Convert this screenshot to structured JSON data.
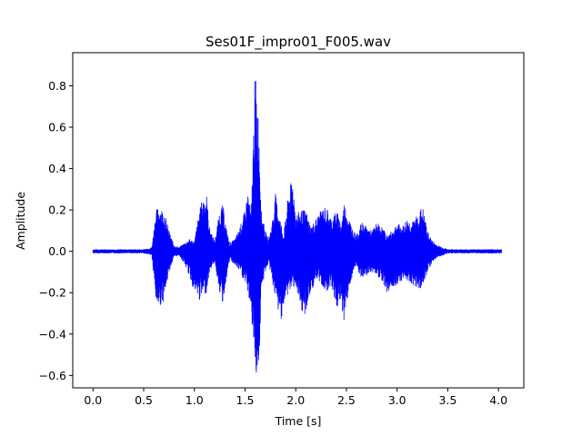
{
  "chart_data": {
    "type": "line",
    "title": "Ses01F_impro01_F005.wav",
    "xlabel": "Time [s]",
    "ylabel": "Amplitude",
    "xlim": [
      -0.2,
      4.25
    ],
    "ylim": [
      -0.66,
      0.96
    ],
    "x_ticks": [
      0.0,
      0.5,
      1.0,
      1.5,
      2.0,
      2.5,
      3.0,
      3.5,
      4.0
    ],
    "x_tick_labels": [
      "0.0",
      "0.5",
      "1.0",
      "1.5",
      "2.0",
      "2.5",
      "3.0",
      "3.5",
      "4.0"
    ],
    "y_ticks": [
      -0.6,
      -0.4,
      -0.2,
      0.0,
      0.2,
      0.4,
      0.6,
      0.8
    ],
    "y_tick_labels": [
      "−0.6",
      "−0.4",
      "−0.2",
      "0.0",
      "0.2",
      "0.4",
      "0.6",
      "0.8"
    ],
    "grid": false,
    "series": [
      {
        "color": "#0000ff",
        "envelope": {
          "x": [
            0.0,
            0.1,
            0.2,
            0.3,
            0.4,
            0.5,
            0.58,
            0.62,
            0.65,
            0.7,
            0.75,
            0.8,
            0.85,
            0.9,
            0.95,
            1.0,
            1.05,
            1.08,
            1.12,
            1.15,
            1.2,
            1.25,
            1.28,
            1.32,
            1.35,
            1.4,
            1.45,
            1.5,
            1.53,
            1.56,
            1.6,
            1.62,
            1.64,
            1.66,
            1.7,
            1.73,
            1.76,
            1.8,
            1.85,
            1.88,
            1.93,
            1.97,
            2.0,
            2.05,
            2.1,
            2.15,
            2.2,
            2.25,
            2.3,
            2.35,
            2.4,
            2.45,
            2.48,
            2.52,
            2.57,
            2.6,
            2.65,
            2.7,
            2.75,
            2.8,
            2.85,
            2.9,
            2.95,
            3.0,
            3.05,
            3.1,
            3.15,
            3.2,
            3.25,
            3.3,
            3.35,
            3.4,
            3.45,
            3.5,
            3.6,
            3.7,
            3.8,
            3.9,
            4.0,
            4.03
          ],
          "max": [
            0.01,
            0.01,
            0.01,
            0.01,
            0.01,
            0.01,
            0.02,
            0.2,
            0.22,
            0.2,
            0.1,
            0.03,
            0.02,
            0.04,
            0.06,
            0.05,
            0.2,
            0.26,
            0.28,
            0.12,
            0.05,
            0.2,
            0.23,
            0.1,
            0.04,
            0.06,
            0.12,
            0.2,
            0.3,
            0.18,
            0.89,
            0.75,
            0.6,
            0.2,
            0.1,
            0.06,
            0.12,
            0.28,
            0.15,
            0.08,
            0.29,
            0.36,
            0.18,
            0.2,
            0.2,
            0.12,
            0.16,
            0.2,
            0.22,
            0.16,
            0.2,
            0.14,
            0.24,
            0.17,
            0.1,
            0.08,
            0.14,
            0.12,
            0.1,
            0.14,
            0.12,
            0.08,
            0.1,
            0.14,
            0.12,
            0.16,
            0.14,
            0.18,
            0.22,
            0.1,
            0.05,
            0.03,
            0.02,
            0.01,
            0.01,
            0.01,
            0.01,
            0.01,
            0.01,
            0.01
          ],
          "min": [
            -0.01,
            -0.01,
            -0.01,
            -0.01,
            -0.01,
            -0.01,
            -0.02,
            -0.25,
            -0.27,
            -0.24,
            -0.1,
            -0.03,
            -0.02,
            -0.06,
            -0.12,
            -0.2,
            -0.24,
            -0.22,
            -0.2,
            -0.1,
            -0.05,
            -0.2,
            -0.26,
            -0.12,
            -0.04,
            -0.07,
            -0.1,
            -0.16,
            -0.2,
            -0.3,
            -0.58,
            -0.6,
            -0.55,
            -0.2,
            -0.1,
            -0.06,
            -0.12,
            -0.24,
            -0.34,
            -0.28,
            -0.2,
            -0.18,
            -0.16,
            -0.33,
            -0.3,
            -0.2,
            -0.14,
            -0.16,
            -0.2,
            -0.16,
            -0.28,
            -0.26,
            -0.35,
            -0.2,
            -0.1,
            -0.08,
            -0.14,
            -0.12,
            -0.1,
            -0.12,
            -0.14,
            -0.2,
            -0.18,
            -0.16,
            -0.14,
            -0.14,
            -0.16,
            -0.18,
            -0.18,
            -0.1,
            -0.05,
            -0.03,
            -0.02,
            -0.01,
            -0.01,
            -0.01,
            -0.01,
            -0.01,
            -0.01,
            -0.01
          ]
        }
      }
    ]
  }
}
